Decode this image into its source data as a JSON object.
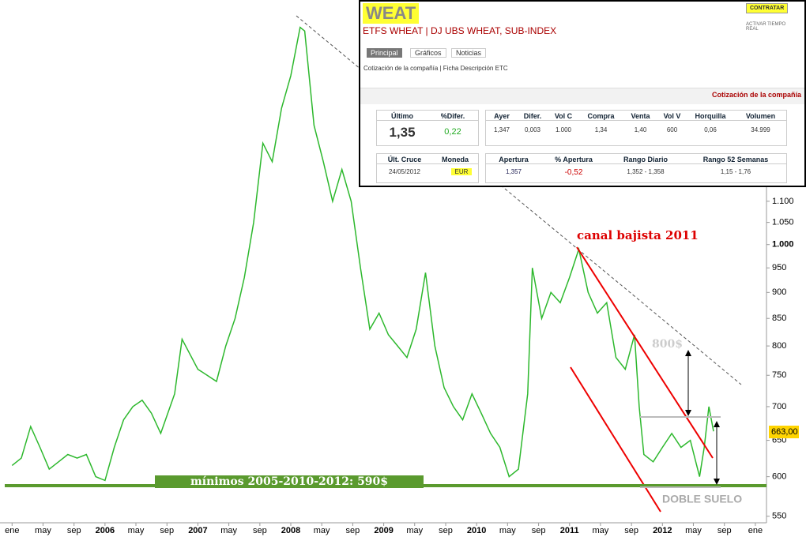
{
  "chart_data": {
    "type": "line",
    "log_scale": true,
    "x": [
      2005.0,
      2005.1,
      2005.2,
      2005.3,
      2005.4,
      2005.5,
      2005.6,
      2005.7,
      2005.8,
      2005.9,
      2006.0,
      2006.1,
      2006.2,
      2006.3,
      2006.4,
      2006.5,
      2006.6,
      2006.75,
      2006.83,
      2006.9,
      2007.0,
      2007.1,
      2007.2,
      2007.3,
      2007.4,
      2007.5,
      2007.6,
      2007.7,
      2007.8,
      2007.9,
      2008.0,
      2008.1,
      2008.15,
      2008.25,
      2008.35,
      2008.45,
      2008.55,
      2008.65,
      2008.75,
      2008.85,
      2008.95,
      2009.05,
      2009.15,
      2009.25,
      2009.35,
      2009.45,
      2009.55,
      2009.65,
      2009.75,
      2009.85,
      2009.95,
      2010.05,
      2010.15,
      2010.25,
      2010.35,
      2010.45,
      2010.55,
      2010.6,
      2010.7,
      2010.8,
      2010.9,
      2011.0,
      2011.1,
      2011.2,
      2011.3,
      2011.4,
      2011.5,
      2011.6,
      2011.7,
      2011.75,
      2011.8,
      2011.9,
      2012.0,
      2012.1,
      2012.2,
      2012.3,
      2012.4,
      2012.45,
      2012.5,
      2012.55
    ],
    "series": [
      {
        "color": "#2db82d",
        "values": [
          615,
          625,
          670,
          640,
          610,
          620,
          630,
          625,
          630,
          600,
          595,
          640,
          680,
          700,
          710,
          690,
          660,
          720,
          812,
          790,
          760,
          750,
          740,
          800,
          850,
          930,
          1050,
          1250,
          1200,
          1350,
          1450,
          1613,
          1600,
          1300,
          1200,
          1100,
          1180,
          1100,
          950,
          830,
          860,
          820,
          800,
          780,
          830,
          940,
          800,
          730,
          700,
          680,
          720,
          690,
          660,
          640,
          600,
          610,
          720,
          950,
          850,
          900,
          880,
          930,
          990,
          900,
          860,
          880,
          780,
          760,
          820,
          700,
          630,
          620,
          640,
          660,
          640,
          650,
          600,
          640,
          700,
          663
        ]
      }
    ],
    "xlim": [
      2004.87,
      2013.12
    ],
    "xticks": [
      {
        "value": 2005.0,
        "label": "ene"
      },
      {
        "value": 2005.333,
        "label": "may"
      },
      {
        "value": 2005.667,
        "label": "sep"
      },
      2006,
      {
        "value": 2006.333,
        "label": "may"
      },
      {
        "value": 2006.667,
        "label": "sep"
      },
      2007,
      {
        "value": 2007.333,
        "label": "may"
      },
      {
        "value": 2007.667,
        "label": "sep"
      },
      2008,
      {
        "value": 2008.333,
        "label": "may"
      },
      {
        "value": 2008.667,
        "label": "sep"
      },
      2009,
      {
        "value": 2009.333,
        "label": "may"
      },
      {
        "value": 2009.667,
        "label": "sep"
      },
      2010,
      {
        "value": 2010.333,
        "label": "may"
      },
      {
        "value": 2010.667,
        "label": "sep"
      },
      2011,
      {
        "value": 2011.333,
        "label": "may"
      },
      {
        "value": 2011.667,
        "label": "sep"
      },
      2012,
      {
        "value": 2012.333,
        "label": "may"
      },
      {
        "value": 2012.667,
        "label": "sep"
      },
      {
        "value": 2013.0,
        "label": "ene"
      }
    ],
    "ylim": [
      544,
      1713
    ],
    "yticks": [
      550,
      600,
      650,
      700,
      750,
      800,
      850,
      900,
      950,
      {
        "value": 1000,
        "label": "1.000"
      },
      {
        "value": 1050,
        "label": "1.050"
      },
      {
        "value": 1100,
        "label": "1.100"
      }
    ],
    "annotations": [
      "canal bajista 2011",
      "800$",
      "mínimos 2005-2010-2012: 590$",
      "DOBLE SUELO",
      "663,00"
    ]
  },
  "panel": {
    "title": "WEAT",
    "subtitle": "ETFS WHEAT | DJ UBS WHEAT, SUB-INDEX",
    "button": "CONTRATAR",
    "realtime": "ACTIVAR TIEMPO REAL",
    "tabs": [
      "Principal",
      "Gráficos",
      "Noticias"
    ],
    "breadcrumb": "Cotización de la compañía | Ficha Descripción ETC",
    "section": "Cotización de la compañía",
    "quote": {
      "headers": [
        "Último",
        "%Difer."
      ],
      "row": [
        "1,35",
        "0,22"
      ]
    },
    "detail": {
      "headers": [
        "Ayer",
        "Difer.",
        "Vol C",
        "Compra",
        "Venta",
        "Vol V",
        "Horquilla",
        "Volumen"
      ],
      "row": [
        "1,347",
        "0,003",
        "1.000",
        "1,34",
        "1,40",
        "600",
        "0,06",
        "34.999"
      ]
    },
    "cross": {
      "headers": [
        "Últ. Cruce",
        "Moneda"
      ],
      "row": [
        "24/05/2012",
        "EUR"
      ]
    },
    "open": {
      "headers": [
        "Apertura",
        "% Apertura",
        "Rango Diario",
        "Rango 52 Semanas"
      ],
      "row": [
        "1,357",
        "-0,52",
        "1,352 - 1,358",
        "1,15 - 1,76"
      ]
    }
  }
}
